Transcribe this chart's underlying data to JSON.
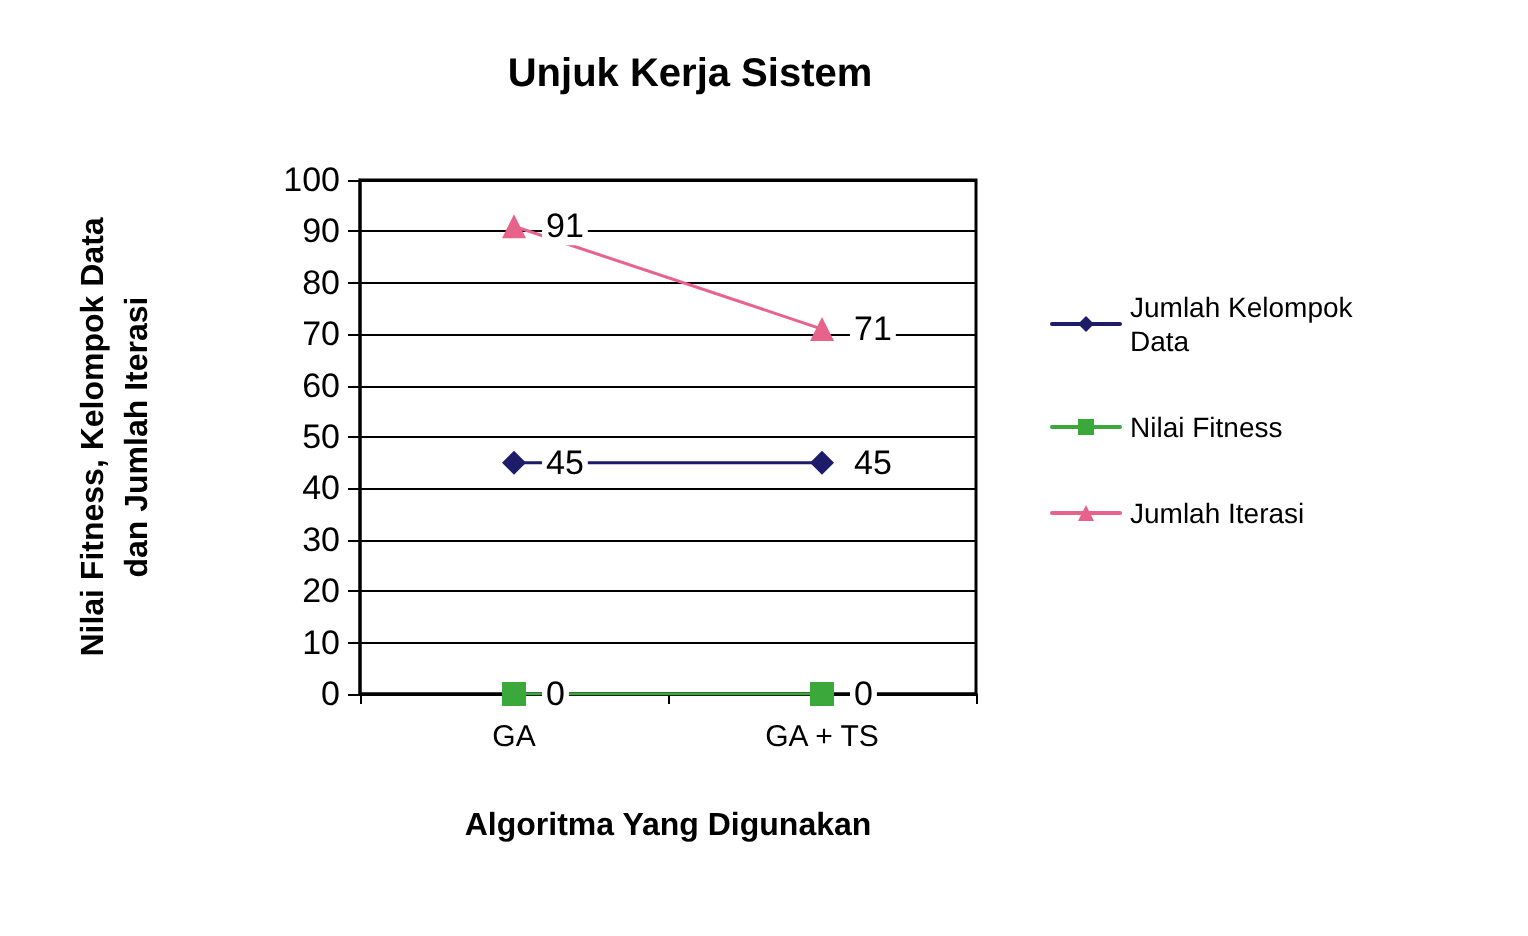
{
  "chart_data": {
    "type": "line",
    "title": "Unjuk Kerja Sistem",
    "xlabel": "Algoritma Yang Digunakan",
    "ylabel": "Nilai Fitness, Kelompok Data\ndan Jumlah Iterasi",
    "categories": [
      "GA",
      "GA + TS"
    ],
    "series": [
      {
        "name": "Jumlah Kelompok Data",
        "color": "#1c1c6a",
        "values": [
          45,
          45
        ],
        "marker": "diamond"
      },
      {
        "name": "Nilai Fitness",
        "color": "#3aa83a",
        "values": [
          0,
          0
        ],
        "marker": "square"
      },
      {
        "name": "Jumlah Iterasi",
        "color": "#e8638c",
        "values": [
          91,
          71
        ],
        "marker": "triangle"
      }
    ],
    "ylim": [
      0,
      100
    ],
    "yticks": [
      0,
      10,
      20,
      30,
      40,
      50,
      60,
      70,
      80,
      90,
      100
    ],
    "grid": "y",
    "legend": "right",
    "data_labels": true,
    "line_style": "solid"
  }
}
